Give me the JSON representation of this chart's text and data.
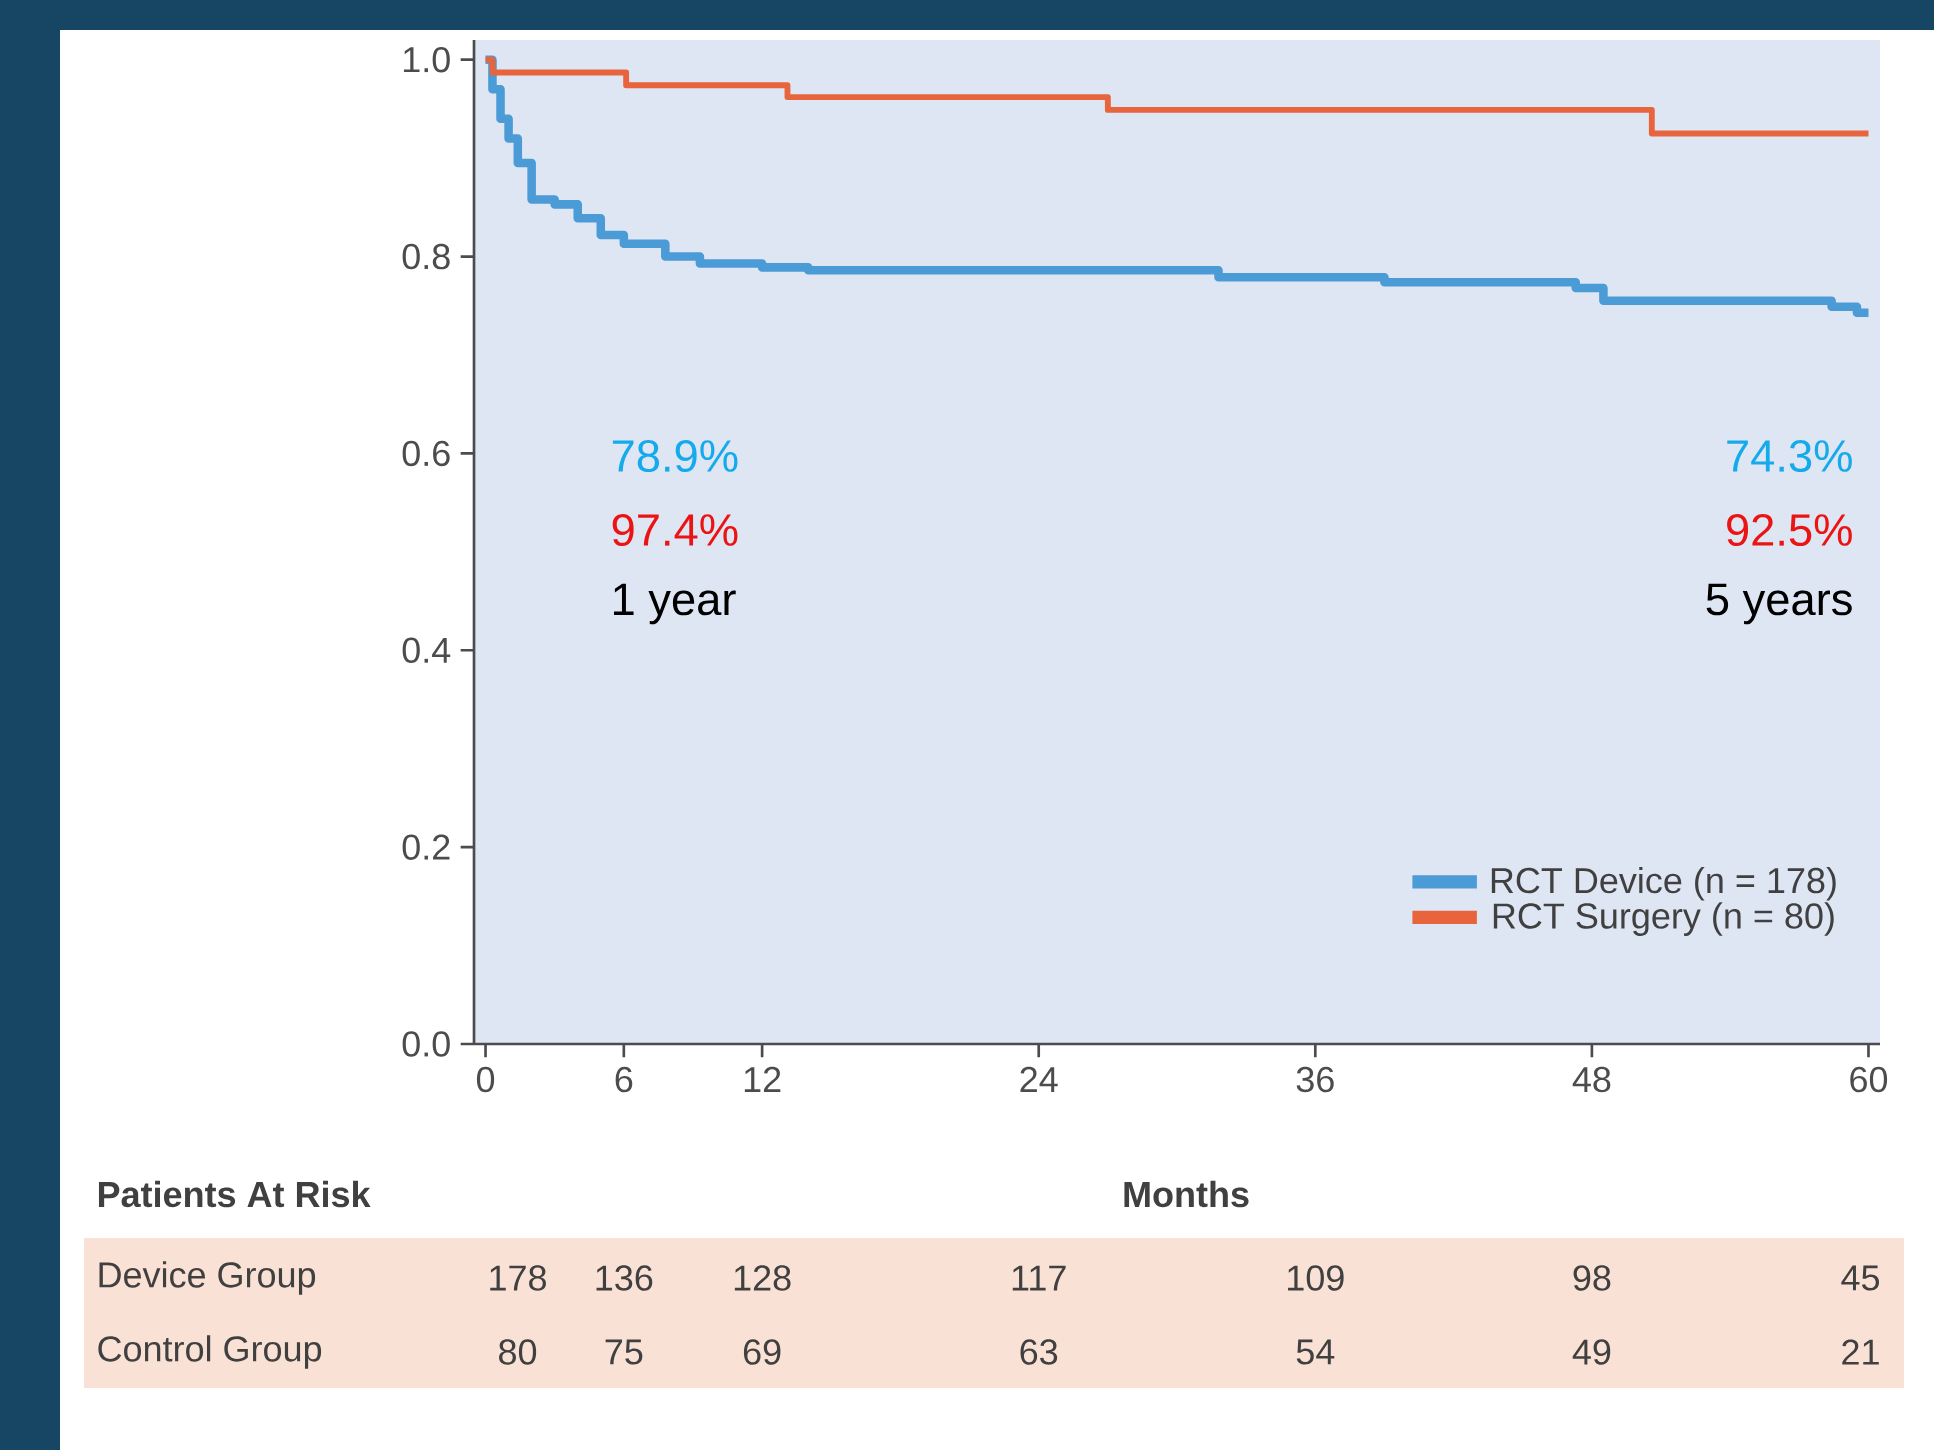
{
  "chart_data": {
    "type": "step",
    "xlabel": "Months",
    "xlim": [
      -0.5,
      60.5
    ],
    "ylim": [
      0,
      1.02
    ],
    "xticks": [
      0,
      6,
      12,
      24,
      36,
      48,
      60
    ],
    "yticks": [
      {
        "value": 0,
        "label": "0.0"
      },
      {
        "value": 0.2,
        "label": "0.2"
      },
      {
        "value": 0.4,
        "label": "0.4"
      },
      {
        "value": 0.6,
        "label": "0.6"
      },
      {
        "value": 0.8,
        "label": "0.8"
      },
      {
        "value": 1.0,
        "label": "1.0"
      }
    ],
    "legend": "bottom right",
    "grid": false,
    "series": [
      {
        "name": "RCT Device (n = 178)",
        "color": "#4a9bd6",
        "x": [
          0,
          0.3,
          0.65,
          1.0,
          1.4,
          2.0,
          3.0,
          4.0,
          5.0,
          6.0,
          7.8,
          9.3,
          12,
          14,
          31.8,
          39,
          47.3,
          48.5,
          58.4,
          59.5,
          60
        ],
        "values": [
          1.0,
          0.97,
          0.94,
          0.92,
          0.895,
          0.858,
          0.853,
          0.839,
          0.822,
          0.813,
          0.8,
          0.793,
          0.789,
          0.786,
          0.779,
          0.774,
          0.768,
          0.755,
          0.749,
          0.743,
          0.743
        ]
      },
      {
        "name": "RCT Surgery (n = 80)",
        "color": "#e8643c",
        "x": [
          0,
          0.3,
          6.1,
          13.1,
          27,
          50.6,
          60
        ],
        "values": [
          1.0,
          0.987,
          0.974,
          0.962,
          0.949,
          0.925,
          0.925
        ]
      }
    ],
    "annotations": [
      "Patients At Risk",
      "Device Group",
      "178",
      "136",
      "128",
      "117",
      "109",
      "98",
      "45",
      "Control Group",
      "80",
      "75",
      "69",
      "63",
      "54",
      "49",
      "21",
      "78.9%",
      "97.4%",
      "1 year",
      "74.3%",
      "92.5%",
      "5 years"
    ]
  }
}
